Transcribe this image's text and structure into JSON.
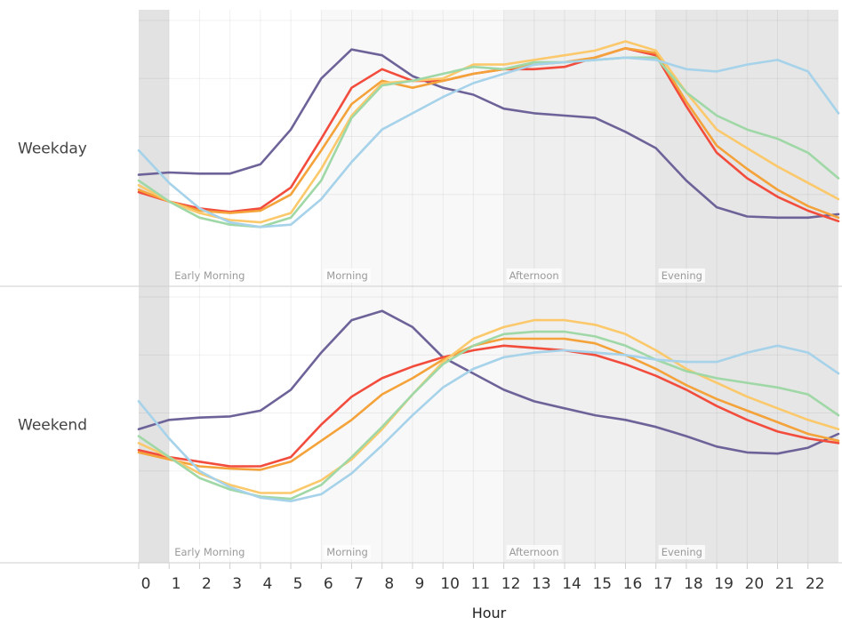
{
  "chart_data": {
    "type": "line",
    "xlabel": "Hour",
    "x_ticks": [
      "0",
      "1",
      "2",
      "3",
      "4",
      "5",
      "6",
      "7",
      "8",
      "9",
      "10",
      "11",
      "12",
      "13",
      "14",
      "15",
      "16",
      "17",
      "18",
      "19",
      "20",
      "21",
      "22"
    ],
    "xlim": [
      0,
      23
    ],
    "ylim": [
      0,
      1
    ],
    "panels": [
      {
        "label": "Weekday"
      },
      {
        "label": "Weekend"
      }
    ],
    "periods": [
      {
        "label": "Early Morning",
        "start": 1,
        "end": 6,
        "fill": "#ffffff"
      },
      {
        "label": "Morning",
        "start": 6,
        "end": 12,
        "fill": "#f8f8f8"
      },
      {
        "label": "Afternoon",
        "start": 12,
        "end": 17,
        "fill": "#efefef"
      },
      {
        "label": "Evening",
        "start": 17,
        "end": 23,
        "fill": "#e6e6e6"
      }
    ],
    "night_band": {
      "start": 0,
      "end": 1,
      "fill": "#e2e2e2"
    },
    "series_colors": [
      "#6e6399",
      "#f24c3d",
      "#f4a23a",
      "#fbc96b",
      "#9fd8a6",
      "#a6d2ea"
    ],
    "weekday": [
      {
        "color": "#6e6399",
        "values": [
          0.335,
          0.345,
          0.34,
          0.34,
          0.38,
          0.53,
          0.75,
          0.875,
          0.85,
          0.76,
          0.71,
          0.68,
          0.62,
          0.6,
          0.59,
          0.58,
          0.52,
          0.45,
          0.31,
          0.195,
          0.155,
          0.15,
          0.15,
          0.165
        ]
      },
      {
        "color": "#f24c3d",
        "values": [
          0.26,
          0.22,
          0.19,
          0.175,
          0.19,
          0.28,
          0.49,
          0.71,
          0.79,
          0.74,
          0.74,
          0.77,
          0.79,
          0.79,
          0.8,
          0.84,
          0.88,
          0.85,
          0.63,
          0.43,
          0.32,
          0.24,
          0.18,
          0.135
        ]
      },
      {
        "color": "#f4a23a",
        "values": [
          0.27,
          0.22,
          0.18,
          0.17,
          0.18,
          0.25,
          0.44,
          0.64,
          0.74,
          0.71,
          0.74,
          0.77,
          0.79,
          0.81,
          0.82,
          0.84,
          0.88,
          0.86,
          0.65,
          0.46,
          0.36,
          0.27,
          0.2,
          0.15
        ]
      },
      {
        "color": "#fbc96b",
        "values": [
          0.29,
          0.22,
          0.17,
          0.14,
          0.13,
          0.17,
          0.36,
          0.59,
          0.73,
          0.74,
          0.75,
          0.81,
          0.81,
          0.83,
          0.85,
          0.87,
          0.91,
          0.87,
          0.69,
          0.53,
          0.45,
          0.37,
          0.3,
          0.23
        ]
      },
      {
        "color": "#9fd8a6",
        "values": [
          0.31,
          0.22,
          0.15,
          0.12,
          0.11,
          0.15,
          0.31,
          0.58,
          0.72,
          0.74,
          0.77,
          0.8,
          0.79,
          0.82,
          0.82,
          0.83,
          0.84,
          0.84,
          0.69,
          0.59,
          0.53,
          0.49,
          0.43,
          0.32
        ]
      },
      {
        "color": "#a6d2ea",
        "values": [
          0.44,
          0.3,
          0.19,
          0.13,
          0.11,
          0.12,
          0.23,
          0.39,
          0.53,
          0.6,
          0.67,
          0.73,
          0.77,
          0.81,
          0.82,
          0.83,
          0.84,
          0.83,
          0.79,
          0.78,
          0.81,
          0.83,
          0.78,
          0.6
        ]
      }
    ],
    "weekend": [
      {
        "color": "#6e6399",
        "values": [
          0.43,
          0.47,
          0.48,
          0.485,
          0.51,
          0.6,
          0.76,
          0.9,
          0.94,
          0.87,
          0.74,
          0.67,
          0.6,
          0.55,
          0.52,
          0.49,
          0.47,
          0.44,
          0.4,
          0.355,
          0.33,
          0.325,
          0.35,
          0.41
        ]
      },
      {
        "color": "#f24c3d",
        "values": [
          0.34,
          0.31,
          0.29,
          0.27,
          0.27,
          0.31,
          0.45,
          0.57,
          0.65,
          0.7,
          0.74,
          0.77,
          0.79,
          0.78,
          0.77,
          0.75,
          0.71,
          0.66,
          0.6,
          0.53,
          0.47,
          0.42,
          0.39,
          0.37
        ]
      },
      {
        "color": "#f4a23a",
        "values": [
          0.33,
          0.3,
          0.27,
          0.26,
          0.255,
          0.29,
          0.38,
          0.47,
          0.58,
          0.65,
          0.73,
          0.79,
          0.82,
          0.82,
          0.82,
          0.8,
          0.75,
          0.69,
          0.62,
          0.56,
          0.51,
          0.46,
          0.41,
          0.38
        ]
      },
      {
        "color": "#fbc96b",
        "values": [
          0.37,
          0.31,
          0.24,
          0.19,
          0.155,
          0.155,
          0.21,
          0.3,
          0.43,
          0.58,
          0.72,
          0.82,
          0.87,
          0.9,
          0.9,
          0.88,
          0.84,
          0.77,
          0.69,
          0.63,
          0.57,
          0.52,
          0.47,
          0.43
        ]
      },
      {
        "color": "#9fd8a6",
        "values": [
          0.4,
          0.31,
          0.22,
          0.17,
          0.14,
          0.13,
          0.19,
          0.31,
          0.44,
          0.58,
          0.71,
          0.79,
          0.84,
          0.85,
          0.85,
          0.83,
          0.79,
          0.73,
          0.68,
          0.65,
          0.63,
          0.61,
          0.58,
          0.49
        ]
      },
      {
        "color": "#a6d2ea",
        "values": [
          0.55,
          0.39,
          0.25,
          0.18,
          0.135,
          0.12,
          0.15,
          0.24,
          0.36,
          0.49,
          0.61,
          0.69,
          0.74,
          0.76,
          0.77,
          0.76,
          0.75,
          0.73,
          0.72,
          0.72,
          0.76,
          0.79,
          0.76,
          0.67
        ]
      }
    ]
  }
}
